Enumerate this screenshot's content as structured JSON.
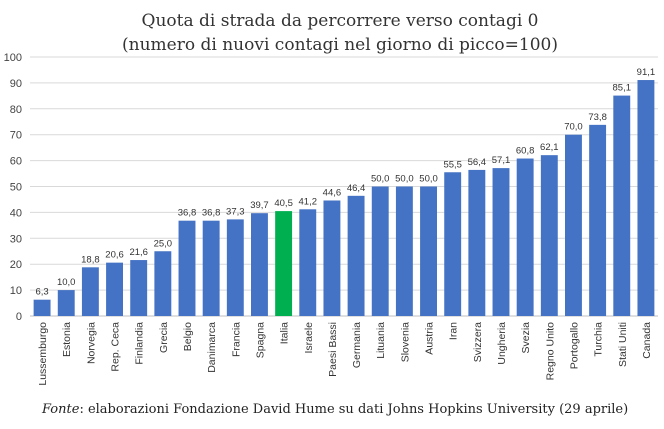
{
  "colors": {
    "bar": "#4472C4",
    "highlight": "#00B050",
    "grid": "#d9d9d9",
    "text": "#333333"
  },
  "source": {
    "label": "Fonte",
    "text": ": elaborazioni Fondazione David Hume su dati Johns Hopkins University (29 aprile)"
  },
  "chart_data": {
    "type": "bar",
    "title": "Quota di strada da percorrere verso contagi 0",
    "subtitle": "(numero di nuovi contagi nel giorno di picco=100)",
    "xlabel": "",
    "ylabel": "",
    "ylim": [
      0,
      100
    ],
    "yticks": [
      0,
      10,
      20,
      30,
      40,
      50,
      60,
      70,
      80,
      90,
      100
    ],
    "grid": true,
    "highlight_category": "Italia",
    "categories": [
      "Lussemburgo",
      "Estonia",
      "Norvegia",
      "Rep. Ceca",
      "Finlandia",
      "Grecia",
      "Belgio",
      "Danimarca",
      "Francia",
      "Spagna",
      "Italia",
      "Israele",
      "Paesi Bassi",
      "Germania",
      "Lituania",
      "Slovenia",
      "Austria",
      "Iran",
      "Svizzera",
      "Ungheria",
      "Svezia",
      "Regno Unito",
      "Portogallo",
      "Turchia",
      "Stati Uniti",
      "Canada"
    ],
    "values": [
      6.3,
      10.0,
      18.8,
      20.6,
      21.6,
      25.0,
      36.8,
      36.8,
      37.3,
      39.7,
      40.5,
      41.2,
      44.6,
      46.4,
      50.0,
      50.0,
      50.0,
      55.5,
      56.4,
      57.1,
      60.8,
      62.1,
      70.0,
      73.8,
      85.1,
      91.1
    ],
    "value_labels": [
      "6,3",
      "10,0",
      "18,8",
      "20,6",
      "21,6",
      "25,0",
      "36,8",
      "36,8",
      "37,3",
      "39,7",
      "40,5",
      "41,2",
      "44,6",
      "46,4",
      "50,0",
      "50,0",
      "50,0",
      "55,5",
      "56,4",
      "57,1",
      "60,8",
      "62,1",
      "70,0",
      "73,8",
      "85,1",
      "91,1"
    ]
  }
}
